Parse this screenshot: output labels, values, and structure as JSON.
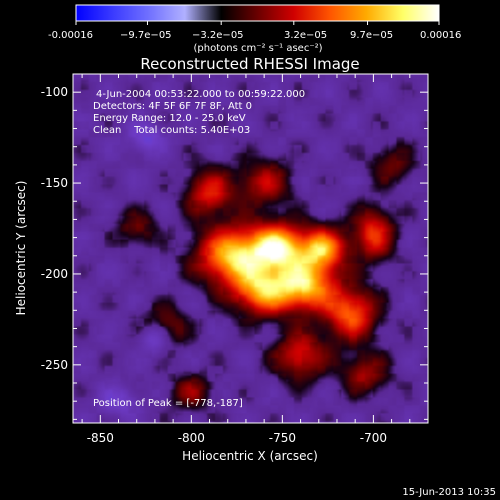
{
  "chart_data": {
    "type": "heatmap",
    "title": "Reconstructed RHESSI Image",
    "xlabel": "Heliocentric X (arcsec)",
    "ylabel": "Heliocentric Y (arcsec)",
    "xlim": [
      -865,
      -670
    ],
    "ylim": [
      -282,
      -90
    ],
    "x_ticks": [
      -850,
      -800,
      -750,
      -700
    ],
    "y_ticks": [
      -100,
      -150,
      -200,
      -250
    ],
    "colorbar": {
      "label": "(photons cm⁻² s⁻¹ asec⁻²)",
      "min": -0.00016,
      "max": 0.00016,
      "tick_labels": [
        "-0.00016",
        "−9.7e−05",
        "−3.2e−05",
        "3.2e−05",
        "9.7e−05",
        "0.00016"
      ],
      "tick_values": [
        -0.00016,
        -9.7e-05,
        -3.2e-05,
        3.2e-05,
        9.7e-05,
        0.00016
      ],
      "colormap": [
        "#0000ff",
        "#3a3aff",
        "#7070ff",
        "#b0b0ff",
        "#000000",
        "#6a0000",
        "#d00000",
        "#ff5500",
        "#ffaa00",
        "#ffff66",
        "#ffffff"
      ]
    },
    "annotations": [
      "4-Jun-2004 00:53:22.000 to 00:59:22.000",
      "Detectors: 4F 5F 6F 7F 8F, Att 0",
      "Energy Range: 12.0 - 25.0 keV",
      "Clean    Total counts: 5.40E+03"
    ],
    "peak_label": "Position of Peak = [-778,-187]",
    "peak_position": [
      -778,
      -187
    ],
    "sources": [
      {
        "x": -776,
        "y": -190,
        "amp": 1.0,
        "sx": 14,
        "sy": 11
      },
      {
        "x": -752,
        "y": -185,
        "amp": 0.9,
        "sx": 10,
        "sy": 9
      },
      {
        "x": -738,
        "y": -206,
        "amp": 0.95,
        "sx": 12,
        "sy": 10
      },
      {
        "x": -728,
        "y": -186,
        "amp": 0.85,
        "sx": 9,
        "sy": 8
      },
      {
        "x": -762,
        "y": -210,
        "amp": 0.75,
        "sx": 11,
        "sy": 9
      },
      {
        "x": -712,
        "y": -222,
        "amp": 0.7,
        "sx": 10,
        "sy": 10
      },
      {
        "x": -700,
        "y": -178,
        "amp": 0.6,
        "sx": 8,
        "sy": 10
      },
      {
        "x": -790,
        "y": -155,
        "amp": 0.55,
        "sx": 9,
        "sy": 9
      },
      {
        "x": -760,
        "y": -150,
        "amp": 0.45,
        "sx": 10,
        "sy": 9
      },
      {
        "x": -740,
        "y": -245,
        "amp": 0.55,
        "sx": 10,
        "sy": 9
      },
      {
        "x": -705,
        "y": -255,
        "amp": 0.4,
        "sx": 9,
        "sy": 8
      },
      {
        "x": -815,
        "y": -230,
        "amp": 0.4,
        "sx": 9,
        "sy": 8
      },
      {
        "x": -800,
        "y": -265,
        "amp": 0.35,
        "sx": 8,
        "sy": 7
      },
      {
        "x": -690,
        "y": -140,
        "amp": 0.3,
        "sx": 8,
        "sy": 8
      },
      {
        "x": -830,
        "y": -175,
        "amp": 0.3,
        "sx": 8,
        "sy": 7
      },
      {
        "x": -820,
        "y": -235,
        "amp": -0.45,
        "sx": 6,
        "sy": 6
      },
      {
        "x": -825,
        "y": -125,
        "amp": -0.3,
        "sx": 7,
        "sy": 6
      },
      {
        "x": -840,
        "y": -270,
        "amp": -0.25,
        "sx": 8,
        "sy": 6
      }
    ]
  },
  "footer": {
    "date": "15-Jun-2013 10:35"
  }
}
